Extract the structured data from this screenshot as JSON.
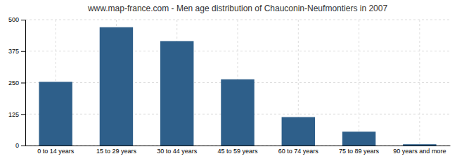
{
  "chart_data": {
    "type": "bar",
    "title": "www.map-france.com - Men age distribution of Chauconin-Neufmontiers in 2007",
    "categories": [
      "0 to 14 years",
      "15 to 29 years",
      "30 to 44 years",
      "45 to 59 years",
      "60 to 74 years",
      "75 to 89 years",
      "90 years and more"
    ],
    "values": [
      253,
      470,
      415,
      263,
      113,
      55,
      5
    ],
    "color": "#2e5f8a",
    "ylim": [
      0,
      500
    ],
    "yticks": [
      0,
      125,
      250,
      375,
      500
    ],
    "grid": true
  }
}
